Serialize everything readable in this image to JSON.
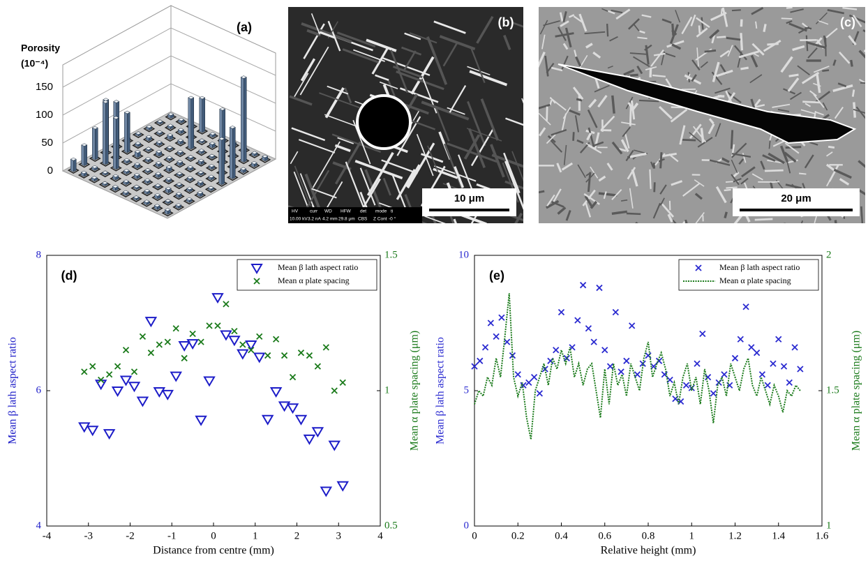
{
  "chart_data": [
    {
      "type": "bar3d",
      "label": "(a)",
      "ylabel": "Porosity",
      "yunit": "(10⁻⁴)",
      "ylim": [
        0,
        190
      ],
      "yticks": [
        0,
        50,
        100,
        150
      ],
      "color": "#415a78",
      "values": [
        [
          20,
          5,
          4,
          3,
          5,
          4,
          3,
          4,
          5,
          6
        ],
        [
          35,
          4,
          3,
          5,
          4,
          3,
          4,
          5,
          3,
          4
        ],
        [
          55,
          110,
          90,
          4,
          5,
          4,
          3,
          6,
          5,
          4
        ],
        [
          95,
          100,
          4,
          5,
          3,
          5,
          4,
          3,
          4,
          5
        ],
        [
          4,
          70,
          8,
          4,
          5,
          6,
          3,
          4,
          5,
          3
        ],
        [
          5,
          4,
          3,
          6,
          4,
          5,
          4,
          3,
          4,
          80
        ],
        [
          3,
          5,
          4,
          3,
          4,
          3,
          5,
          4,
          4,
          90
        ],
        [
          4,
          3,
          6,
          5,
          90,
          4,
          3,
          95,
          4,
          5
        ],
        [
          3,
          4,
          5,
          4,
          3,
          6,
          4,
          4,
          150,
          5
        ],
        [
          5,
          4,
          3,
          60,
          4,
          3,
          5,
          4,
          4,
          6
        ]
      ]
    },
    {
      "type": "scatter",
      "label": "(d)",
      "xlabel": "Distance from centre (mm)",
      "ylabel": "Mean β lath aspect ratio",
      "y2label": "Mean α plate spacing (μm)",
      "xlim": [
        -4,
        4
      ],
      "xticks": [
        -4,
        -3,
        -2,
        -1,
        0,
        1,
        2,
        3,
        4
      ],
      "ylim": [
        4,
        8
      ],
      "yticks": [
        4,
        6,
        8
      ],
      "y2lim": [
        0.5,
        1.5
      ],
      "y2ticks": [
        0.5,
        1,
        1.5
      ],
      "legend": "upper right",
      "series": [
        {
          "name": "Mean β lath aspect ratio",
          "color": "#1c1cc8",
          "marker": "triangle-down",
          "x": [
            -3.1,
            -2.9,
            -2.7,
            -2.5,
            -2.3,
            -2.1,
            -1.9,
            -1.7,
            -1.5,
            -1.3,
            -1.1,
            -0.9,
            -0.7,
            -0.5,
            -0.3,
            -0.1,
            0.1,
            0.3,
            0.5,
            0.7,
            0.9,
            1.1,
            1.3,
            1.5,
            1.7,
            1.9,
            2.1,
            2.3,
            2.5,
            2.7,
            2.9,
            3.1
          ],
          "values": [
            5.47,
            5.42,
            6.1,
            5.37,
            6.0,
            6.16,
            6.07,
            5.85,
            7.03,
            5.99,
            5.95,
            6.22,
            6.67,
            6.7,
            5.57,
            6.15,
            7.38,
            6.83,
            6.75,
            6.55,
            6.68,
            6.5,
            5.58,
            5.99,
            5.78,
            5.75,
            5.58,
            5.29,
            5.4,
            4.52,
            5.2,
            4.6
          ]
        },
        {
          "name": "Mean α plate spacing",
          "color": "#1a7a1a",
          "marker": "x",
          "axis": "y2",
          "x": [
            -3.1,
            -2.9,
            -2.7,
            -2.5,
            -2.3,
            -2.1,
            -1.9,
            -1.7,
            -1.5,
            -1.3,
            -1.1,
            -0.9,
            -0.7,
            -0.5,
            -0.3,
            -0.1,
            0.1,
            0.3,
            0.5,
            0.7,
            0.9,
            1.1,
            1.3,
            1.5,
            1.7,
            1.9,
            2.1,
            2.3,
            2.5,
            2.7,
            2.9,
            3.1
          ],
          "values": [
            1.07,
            1.09,
            1.04,
            1.06,
            1.09,
            1.15,
            1.07,
            1.2,
            1.14,
            1.17,
            1.18,
            1.23,
            1.12,
            1.21,
            1.18,
            1.24,
            1.24,
            1.32,
            1.22,
            1.17,
            1.15,
            1.2,
            1.13,
            1.19,
            1.13,
            1.05,
            1.14,
            1.13,
            1.09,
            1.16,
            1.0,
            1.03
          ]
        }
      ]
    },
    {
      "type": "scatter",
      "label": "(e)",
      "xlabel": "Relative height (mm)",
      "ylabel": "Mean β lath aspect ratio",
      "y2label": "Mean α plate spacing (μm)",
      "xlim": [
        0,
        1.6
      ],
      "xticks": [
        0,
        0.2,
        0.4,
        0.6,
        0.8,
        1,
        1.2,
        1.4,
        1.6
      ],
      "ylim": [
        0,
        10
      ],
      "yticks": [
        0,
        5,
        10
      ],
      "y2lim": [
        1,
        2
      ],
      "y2ticks": [
        1,
        1.5,
        2
      ],
      "legend": "upper right",
      "series": [
        {
          "name": "Mean β lath aspect ratio",
          "color": "#2a2ad0",
          "marker": "x",
          "x": [
            0,
            0.025,
            0.05,
            0.075,
            0.1,
            0.125,
            0.15,
            0.175,
            0.2,
            0.225,
            0.25,
            0.275,
            0.3,
            0.325,
            0.35,
            0.375,
            0.4,
            0.425,
            0.45,
            0.475,
            0.5,
            0.525,
            0.55,
            0.575,
            0.6,
            0.625,
            0.65,
            0.675,
            0.7,
            0.725,
            0.75,
            0.775,
            0.8,
            0.825,
            0.85,
            0.875,
            0.9,
            0.925,
            0.95,
            0.975,
            1,
            1.025,
            1.05,
            1.075,
            1.1,
            1.125,
            1.15,
            1.175,
            1.2,
            1.225,
            1.25,
            1.275,
            1.3,
            1.325,
            1.35,
            1.375,
            1.4,
            1.425,
            1.45,
            1.475,
            1.5
          ],
          "values": [
            5.9,
            6.1,
            6.6,
            7.5,
            7.0,
            7.7,
            6.8,
            6.3,
            5.6,
            5.2,
            5.3,
            5.5,
            4.9,
            5.8,
            6.1,
            6.5,
            7.9,
            6.2,
            6.6,
            7.6,
            8.9,
            7.3,
            6.8,
            8.8,
            6.5,
            5.9,
            7.9,
            5.7,
            6.1,
            7.4,
            5.6,
            6.0,
            6.3,
            5.9,
            6.1,
            5.6,
            5.4,
            4.7,
            4.6,
            5.2,
            5.1,
            6.0,
            7.1,
            5.5,
            4.9,
            5.3,
            5.6,
            5.2,
            6.2,
            6.9,
            8.1,
            6.6,
            6.4,
            5.6,
            5.2,
            6.0,
            6.9,
            5.9,
            5.3,
            6.6,
            5.8
          ]
        },
        {
          "name": "Mean α plate spacing",
          "color": "#1a7a1a",
          "type": "line",
          "style": "dotted",
          "axis": "y2",
          "x": [
            0,
            0.02,
            0.04,
            0.06,
            0.08,
            0.1,
            0.12,
            0.14,
            0.16,
            0.18,
            0.2,
            0.22,
            0.24,
            0.26,
            0.28,
            0.3,
            0.32,
            0.34,
            0.36,
            0.38,
            0.4,
            0.42,
            0.44,
            0.46,
            0.48,
            0.5,
            0.52,
            0.54,
            0.56,
            0.58,
            0.6,
            0.62,
            0.64,
            0.66,
            0.68,
            0.7,
            0.72,
            0.74,
            0.76,
            0.78,
            0.8,
            0.82,
            0.84,
            0.86,
            0.88,
            0.9,
            0.92,
            0.94,
            0.96,
            0.98,
            1,
            1.02,
            1.04,
            1.06,
            1.08,
            1.1,
            1.12,
            1.14,
            1.16,
            1.18,
            1.2,
            1.22,
            1.24,
            1.26,
            1.28,
            1.3,
            1.32,
            1.34,
            1.36,
            1.38,
            1.4,
            1.42,
            1.44,
            1.46,
            1.48,
            1.5
          ],
          "values": [
            1.45,
            1.5,
            1.48,
            1.55,
            1.52,
            1.62,
            1.55,
            1.7,
            1.86,
            1.55,
            1.48,
            1.53,
            1.4,
            1.32,
            1.5,
            1.55,
            1.6,
            1.52,
            1.62,
            1.58,
            1.65,
            1.6,
            1.66,
            1.55,
            1.6,
            1.52,
            1.58,
            1.6,
            1.5,
            1.4,
            1.58,
            1.45,
            1.6,
            1.52,
            1.56,
            1.48,
            1.6,
            1.55,
            1.5,
            1.62,
            1.68,
            1.55,
            1.6,
            1.64,
            1.58,
            1.48,
            1.53,
            1.45,
            1.55,
            1.6,
            1.5,
            1.55,
            1.45,
            1.58,
            1.5,
            1.38,
            1.52,
            1.55,
            1.48,
            1.6,
            1.55,
            1.5,
            1.58,
            1.62,
            1.52,
            1.48,
            1.55,
            1.5,
            1.45,
            1.52,
            1.48,
            1.42,
            1.5,
            1.48,
            1.52,
            1.5
          ]
        }
      ]
    }
  ],
  "images": [
    {
      "label": "(b)",
      "scale_bar": "10 μm",
      "info_header": [
        "HV",
        "curr",
        "WD",
        "HFW",
        "det",
        "mode",
        "ti"
      ],
      "info_values": [
        "10.00 kV",
        "3.2 nA",
        "4.2 mm",
        "29.8 μm",
        "CBS",
        "Z Cont",
        "-0 °"
      ]
    },
    {
      "label": "(c)",
      "scale_bar": "20 μm"
    }
  ]
}
